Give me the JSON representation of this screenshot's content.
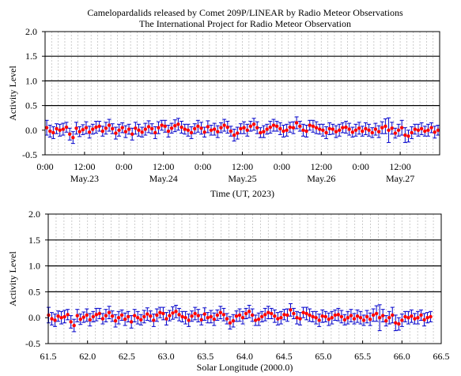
{
  "figure": {
    "title_line1": "Camelopardalids released by Comet 209P/LINEAR by Radio Meteor Observations",
    "title_line2": "The International Project for Radio Meteor Observation"
  },
  "colors": {
    "point": "#ff0000",
    "errorbar": "#0000cc",
    "hline": "#000000",
    "grid": "#c0c0c0"
  },
  "chart_data": [
    {
      "type": "scatter",
      "ylabel": "Activity Level",
      "xlabel": "Time (UT,  2023)",
      "ylim": [
        -0.5,
        2.0
      ],
      "yticks": [
        "2.0",
        "1.5",
        "1.0",
        "0.5",
        "0.0",
        "-0.5"
      ],
      "ytick_values": [
        2.0,
        1.5,
        1.0,
        0.5,
        0.0,
        -0.5
      ],
      "hlines": [
        0.5,
        1.0,
        1.5
      ],
      "xlim_hours": [
        0,
        120
      ],
      "xticks_time": [
        "0:00",
        "12:00",
        "0:00",
        "12:00",
        "0:00",
        "12:00",
        "0:00",
        "12:00",
        "0:00",
        "12:00"
      ],
      "xticks_date": [
        "May.23",
        "May.24",
        "May.25",
        "May.26",
        "May.27"
      ],
      "grid": "vertical dashed every 2 hours",
      "series": [
        {
          "x_hours_start": 0,
          "x_step_hours": 1,
          "y": [
            0.05,
            -0.02,
            -0.05,
            0.03,
            0.0,
            0.02,
            0.06,
            -0.08,
            -0.15,
            0.04,
            -0.03,
            0.01,
            0.05,
            -0.04,
            0.02,
            0.06,
            0.08,
            -0.02,
            0.04,
            0.1,
            0.03,
            -0.06,
            0.0,
            0.05,
            -0.03,
            0.02,
            -0.08,
            0.04,
            0.0,
            -0.04,
            0.02,
            0.07,
            0.03,
            -0.05,
            0.05,
            0.1,
            0.08,
            -0.02,
            0.04,
            0.09,
            0.12,
            0.06,
            0.02,
            0.0,
            -0.05,
            0.03,
            0.08,
            0.04,
            -0.04,
            0.07,
            0.0,
            0.02,
            -0.03,
            0.05,
            0.1,
            0.06,
            -0.02,
            -0.1,
            -0.06,
            0.03,
            0.05,
            0.0,
            0.08,
            0.12,
            0.05,
            -0.05,
            -0.03,
            0.02,
            0.06,
            0.1,
            0.08,
            0.03,
            -0.02,
            0.0,
            0.06,
            0.05,
            0.15,
            0.08,
            0.0,
            -0.02,
            0.1,
            0.08,
            0.05,
            0.02,
            0.0,
            -0.05,
            0.03,
            0.02,
            -0.03,
            0.0,
            0.05,
            0.06,
            0.02,
            -0.04,
            0.0,
            0.04,
            -0.02,
            0.03,
            0.0,
            -0.05,
            0.02,
            -0.03,
            0.05,
            0.08,
            0.0,
            0.04,
            -0.06,
            0.0,
            0.05,
            -0.1,
            -0.12,
            -0.05,
            0.02,
            0.0,
            0.03,
            -0.02,
            0.0,
            0.05,
            -0.04,
            0.0,
            0.02
          ],
          "err": [
            0.15,
            0.12,
            0.12,
            0.1,
            0.12,
            0.12,
            0.1,
            0.12,
            0.12,
            0.12,
            0.1,
            0.1,
            0.12,
            0.12,
            0.1,
            0.12,
            0.1,
            0.1,
            0.12,
            0.12,
            0.1,
            0.12,
            0.12,
            0.1,
            0.12,
            0.1,
            0.12,
            0.12,
            0.12,
            0.1,
            0.12,
            0.12,
            0.1,
            0.12,
            0.12,
            0.1,
            0.12,
            0.12,
            0.1,
            0.12,
            0.12,
            0.12,
            0.1,
            0.12,
            0.12,
            0.1,
            0.12,
            0.12,
            0.1,
            0.12,
            0.1,
            0.12,
            0.12,
            0.1,
            0.12,
            0.12,
            0.1,
            0.12,
            0.12,
            0.1,
            0.12,
            0.12,
            0.1,
            0.12,
            0.12,
            0.1,
            0.12,
            0.1,
            0.12,
            0.12,
            0.1,
            0.12,
            0.12,
            0.12,
            0.1,
            0.12,
            0.12,
            0.1,
            0.12,
            0.12,
            0.1,
            0.12,
            0.12,
            0.1,
            0.12,
            0.12,
            0.12,
            0.1,
            0.12,
            0.12,
            0.1,
            0.12,
            0.12,
            0.1,
            0.12,
            0.12,
            0.1,
            0.12,
            0.12,
            0.1,
            0.12,
            0.12,
            0.12,
            0.15,
            0.25,
            0.12,
            0.1,
            0.12,
            0.15,
            0.15,
            0.12,
            0.12,
            0.1,
            0.12,
            0.12,
            0.1,
            0.12,
            0.1,
            0.12,
            0.1,
            0.1
          ]
        }
      ]
    },
    {
      "type": "scatter",
      "ylabel": "Activity Level",
      "xlabel": "Solar Longitude (2000.0)",
      "ylim": [
        -0.5,
        2.0
      ],
      "yticks": [
        "2.0",
        "1.5",
        "1.0",
        "0.5",
        "0.0",
        "-0.5"
      ],
      "ytick_values": [
        2.0,
        1.5,
        1.0,
        0.5,
        0.0,
        -0.5
      ],
      "hlines": [
        0.5,
        1.0,
        1.5
      ],
      "xlim": [
        61.5,
        66.5
      ],
      "xticks": [
        "61.5",
        "62.0",
        "62.5",
        "63.0",
        "63.5",
        "64.0",
        "64.5",
        "65.0",
        "65.5",
        "66.0",
        "66.5"
      ],
      "xtick_values": [
        61.5,
        62.0,
        62.5,
        63.0,
        63.5,
        64.0,
        64.5,
        65.0,
        65.5,
        66.0,
        66.5
      ],
      "grid": "vertical dashed every 0.1",
      "series": [
        {
          "x_start": 61.505,
          "x_step": 0.0405,
          "y": [
            0.05,
            -0.02,
            -0.05,
            0.03,
            0.0,
            0.02,
            0.06,
            -0.08,
            -0.15,
            0.04,
            -0.03,
            0.01,
            0.05,
            -0.04,
            0.02,
            0.06,
            0.08,
            -0.02,
            0.04,
            0.1,
            0.03,
            -0.06,
            0.0,
            0.05,
            -0.03,
            0.02,
            -0.08,
            0.04,
            0.0,
            -0.04,
            0.02,
            0.07,
            0.03,
            -0.05,
            0.05,
            0.1,
            0.08,
            -0.02,
            0.04,
            0.09,
            0.12,
            0.06,
            0.02,
            0.0,
            -0.05,
            0.03,
            0.08,
            0.04,
            -0.04,
            0.07,
            0.0,
            0.02,
            -0.03,
            0.05,
            0.1,
            0.06,
            -0.02,
            -0.1,
            -0.06,
            0.03,
            0.05,
            0.0,
            0.08,
            0.12,
            0.05,
            -0.05,
            -0.03,
            0.02,
            0.06,
            0.1,
            0.08,
            0.03,
            -0.02,
            0.0,
            0.06,
            0.05,
            0.15,
            0.08,
            0.0,
            -0.02,
            0.1,
            0.08,
            0.05,
            0.02,
            0.0,
            -0.05,
            0.03,
            0.02,
            -0.03,
            0.0,
            0.05,
            0.06,
            0.02,
            -0.04,
            0.0,
            0.04,
            -0.02,
            0.03,
            0.0,
            -0.05,
            0.02,
            -0.03,
            0.05,
            0.08,
            0.0,
            0.04,
            -0.06,
            0.0,
            0.05,
            -0.1,
            -0.12,
            -0.05,
            0.02,
            0.0,
            0.03,
            -0.02,
            0.0,
            0.05,
            -0.04,
            0.0,
            0.02
          ],
          "err": [
            0.15,
            0.12,
            0.12,
            0.1,
            0.12,
            0.12,
            0.1,
            0.12,
            0.12,
            0.12,
            0.1,
            0.1,
            0.12,
            0.12,
            0.1,
            0.12,
            0.1,
            0.1,
            0.12,
            0.12,
            0.1,
            0.12,
            0.12,
            0.1,
            0.12,
            0.1,
            0.12,
            0.12,
            0.12,
            0.1,
            0.12,
            0.12,
            0.1,
            0.12,
            0.12,
            0.1,
            0.12,
            0.12,
            0.1,
            0.12,
            0.12,
            0.12,
            0.1,
            0.12,
            0.12,
            0.1,
            0.12,
            0.12,
            0.1,
            0.12,
            0.1,
            0.12,
            0.12,
            0.1,
            0.12,
            0.12,
            0.1,
            0.12,
            0.12,
            0.1,
            0.12,
            0.12,
            0.1,
            0.12,
            0.12,
            0.1,
            0.12,
            0.1,
            0.12,
            0.12,
            0.1,
            0.12,
            0.12,
            0.12,
            0.1,
            0.12,
            0.12,
            0.1,
            0.12,
            0.12,
            0.1,
            0.12,
            0.12,
            0.1,
            0.12,
            0.12,
            0.12,
            0.1,
            0.12,
            0.12,
            0.1,
            0.12,
            0.12,
            0.1,
            0.12,
            0.12,
            0.1,
            0.12,
            0.12,
            0.1,
            0.12,
            0.12,
            0.12,
            0.15,
            0.25,
            0.12,
            0.1,
            0.12,
            0.15,
            0.15,
            0.12,
            0.12,
            0.1,
            0.12,
            0.12,
            0.1,
            0.12,
            0.1,
            0.12,
            0.1,
            0.1
          ]
        }
      ]
    }
  ]
}
